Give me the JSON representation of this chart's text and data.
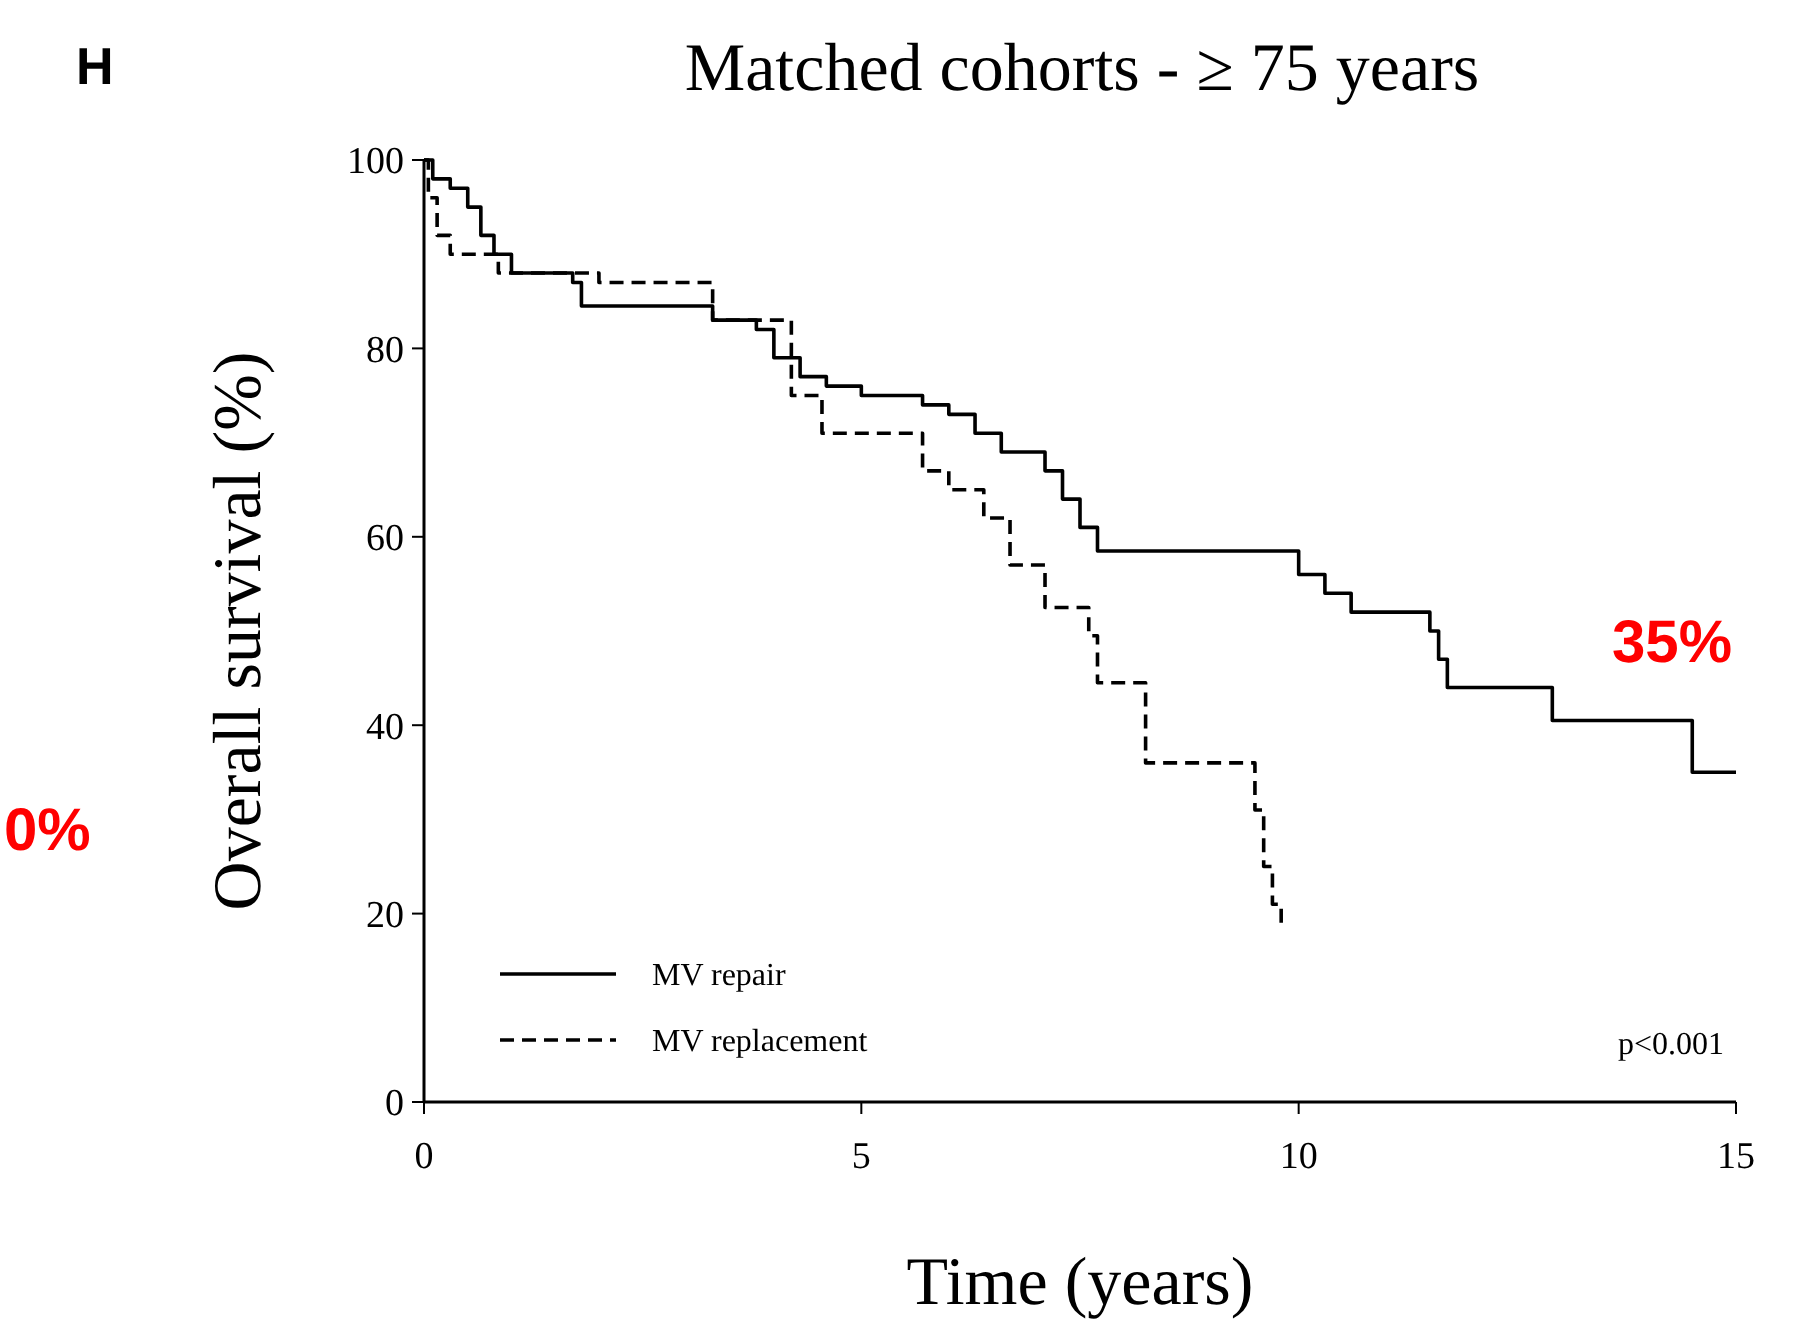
{
  "chart_data": {
    "type": "step",
    "title": "Matched cohorts - ≥ 75 years",
    "xlabel": "Time (years)",
    "ylabel": "Overall survival (%)",
    "xlim": [
      0,
      15
    ],
    "xticks": [
      0,
      5,
      10,
      15
    ],
    "ylim": [
      0,
      100
    ],
    "yticks": [
      0,
      20,
      40,
      60,
      80,
      100
    ],
    "grid": false,
    "legend": "bottom left",
    "series": [
      {
        "name": "MV repair",
        "color": "#000000",
        "line_style": "solid",
        "x": [
          0,
          0.1,
          0.3,
          0.5,
          0.65,
          0.8,
          1.0,
          1.7,
          1.8,
          2.9,
          3.3,
          3.8,
          4.0,
          4.3,
          4.6,
          5.0,
          5.7,
          6.0,
          6.3,
          6.6,
          7.1,
          7.3,
          7.5,
          7.7,
          9.8,
          10.0,
          10.3,
          10.6,
          11.3,
          11.5,
          11.6,
          11.7,
          12.9,
          14.5,
          15
        ],
        "values": [
          100,
          98,
          97,
          95,
          92,
          90,
          88,
          87,
          84.5,
          84.5,
          83,
          82,
          79,
          77,
          76,
          75,
          74,
          73,
          71,
          69,
          67,
          64,
          61,
          58.5,
          58.5,
          56,
          54,
          52,
          52,
          50,
          47,
          44,
          40.5,
          35,
          35
        ]
      },
      {
        "name": "MV replacement",
        "color": "#000000",
        "line_style": "dashed",
        "x": [
          0,
          0.05,
          0.15,
          0.3,
          0.85,
          2.0,
          3.0,
          3.3,
          4.2,
          4.55,
          5.6,
          5.7,
          6.0,
          6.4,
          6.7,
          7.1,
          7.5,
          7.6,
          7.7,
          8.25,
          8.9,
          9.5,
          9.6,
          9.7,
          9.8
        ],
        "values": [
          100,
          96,
          92,
          90,
          88,
          87,
          87,
          83,
          75,
          71,
          71,
          67,
          65,
          62,
          57,
          52.5,
          52.5,
          49.5,
          44.5,
          36,
          36,
          31,
          25,
          21,
          19
        ]
      }
    ],
    "annotations": [
      "H",
      {
        "text": "35%",
        "x": 15,
        "y": 35
      },
      "0%",
      "p<0.001"
    ]
  }
}
